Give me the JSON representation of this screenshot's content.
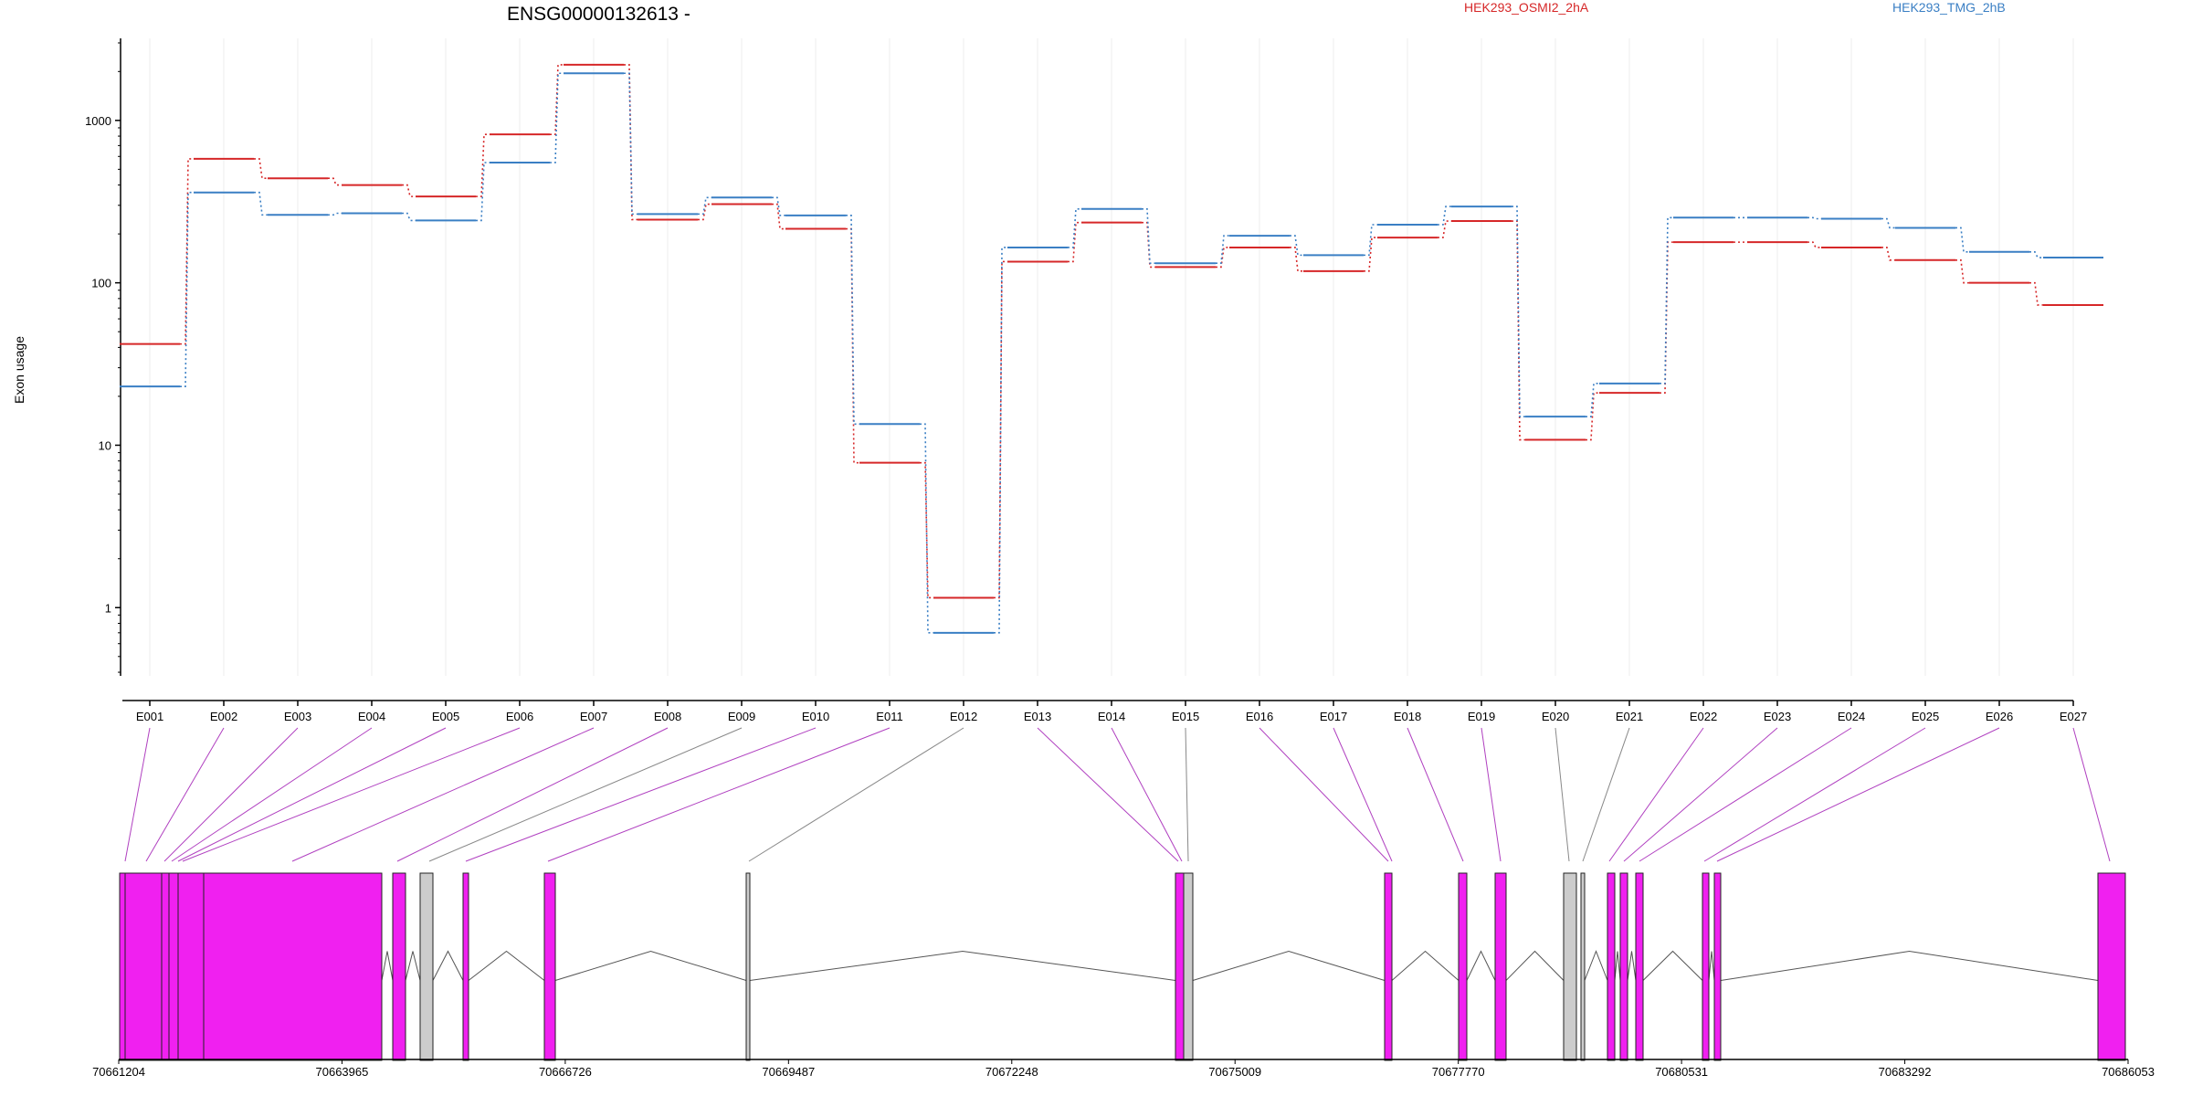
{
  "chart_data": {
    "type": "line",
    "title": "ENSG00000132613 -",
    "ylabel": "Exon usage",
    "xlabel": "",
    "y_scale": "log",
    "y_ticks": [
      "1",
      "10",
      "100",
      "1000"
    ],
    "ylim": [
      0.38,
      3200
    ],
    "grid": "vertical lines at each exon",
    "legend_placement": "top",
    "categories": [
      "E001",
      "E002",
      "E003",
      "E004",
      "E005",
      "E006",
      "E007",
      "E008",
      "E009",
      "E010",
      "E011",
      "E012",
      "E013",
      "E014",
      "E015",
      "E016",
      "E017",
      "E018",
      "E019",
      "E020",
      "E021",
      "E022",
      "E023",
      "E024",
      "E025",
      "E026",
      "E027"
    ],
    "series": [
      {
        "name": "HEK293_OSMI2_2hA",
        "color": "#d62728",
        "values": [
          42,
          580,
          440,
          400,
          340,
          820,
          2200,
          245,
          305,
          215,
          7.8,
          1.15,
          135,
          235,
          125,
          165,
          118,
          190,
          240,
          10.8,
          21,
          178,
          178,
          165,
          138,
          100,
          73
        ]
      },
      {
        "name": "HEK293_TMG_2hB",
        "color": "#3a7fc4",
        "values": [
          23,
          360,
          262,
          268,
          242,
          550,
          1950,
          265,
          335,
          260,
          13.5,
          0.7,
          165,
          285,
          132,
          195,
          148,
          228,
          295,
          15,
          24,
          252,
          252,
          248,
          218,
          155,
          143
        ]
      }
    ],
    "genomic_axis": {
      "tick_labels": [
        "70661204",
        "70663965",
        "70666726",
        "70669487",
        "70672248",
        "70675009",
        "70677770",
        "70680531",
        "70683292",
        "70686053"
      ]
    },
    "exon_colors": {
      "significant": "#f020f0",
      "not_significant": "#cccccc"
    }
  }
}
